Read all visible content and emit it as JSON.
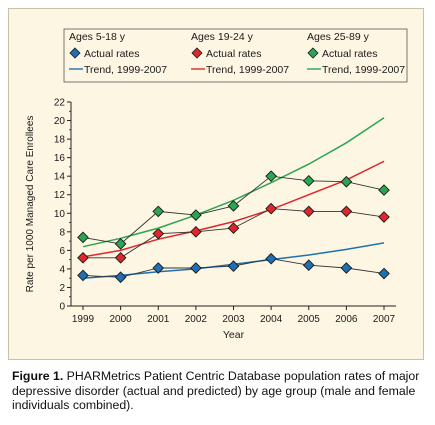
{
  "chart_data": {
    "type": "line",
    "xlabel": "Year",
    "ylabel": "Rate per 1000 Managed Care Enrollees",
    "x": [
      "1999",
      "2000",
      "2001",
      "2002",
      "2003",
      "2004",
      "2005",
      "2006",
      "2007"
    ],
    "ylim": [
      0,
      22
    ],
    "yticks": [
      0,
      2,
      4,
      6,
      8,
      10,
      12,
      14,
      16,
      18,
      20,
      22
    ],
    "grid": false,
    "legend_placement": "top",
    "groups": [
      {
        "group_label": "Ages 5-18 y",
        "color": "#1f6fb4",
        "actual_label": "Actual rates",
        "trend_label": "Trend, 1999-2007",
        "actual": [
          3.3,
          3.1,
          4.1,
          4.1,
          4.3,
          5.1,
          4.4,
          4.1,
          3.5
        ],
        "trend": [
          3.0,
          3.3,
          3.7,
          4.0,
          4.5,
          5.0,
          5.5,
          6.1,
          6.8
        ]
      },
      {
        "group_label": "Ages 19-24 y",
        "color": "#e0262b",
        "actual_label": "Actual rates",
        "trend_label": "Trend, 1999-2007",
        "actual": [
          5.2,
          5.2,
          7.8,
          8.0,
          8.4,
          10.5,
          10.2,
          10.2,
          9.6
        ],
        "trend": [
          5.3,
          6.0,
          7.2,
          8.1,
          9.1,
          10.4,
          12.0,
          13.6,
          15.6
        ]
      },
      {
        "group_label": "Ages 25-89 y",
        "color": "#2ca552",
        "actual_label": "Actual rates",
        "trend_label": "Trend, 1999-2007",
        "actual": [
          7.4,
          6.7,
          10.2,
          9.8,
          10.8,
          14.0,
          13.5,
          13.4,
          12.5
        ],
        "trend": [
          6.4,
          7.3,
          8.4,
          9.8,
          11.4,
          13.3,
          15.3,
          17.6,
          20.3
        ]
      }
    ]
  },
  "caption": {
    "label": "Figure 1.",
    "text": " PHARMetrics Patient Centric Database population rates of major depressive disorder (actual and predicted) by age group (male and female individuals combined)."
  },
  "styles": {
    "figure_background": "#fdf6e3",
    "axis_color": "#222222",
    "marker_outline": "#1a1a1a"
  }
}
